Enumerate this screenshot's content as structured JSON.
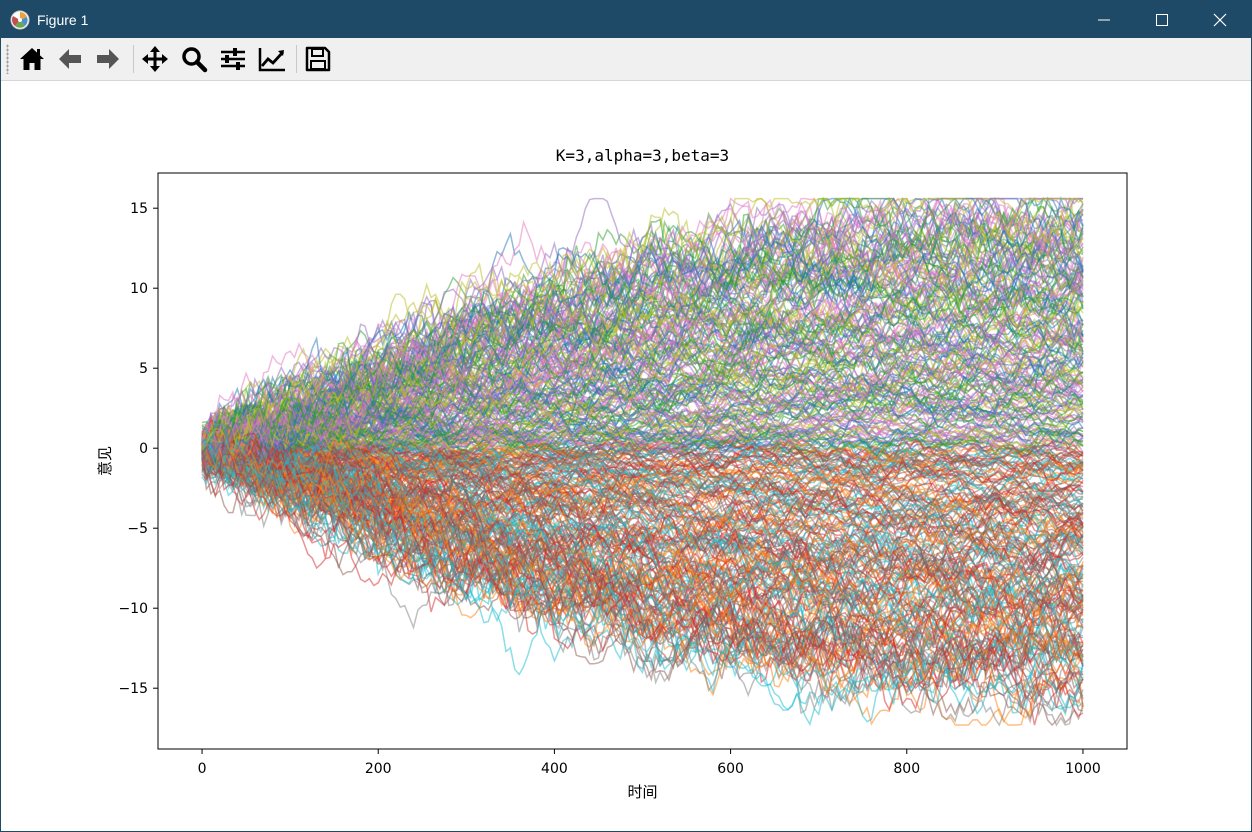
{
  "window": {
    "title": "Figure 1",
    "titlebar_color": "#1e4a67",
    "controls": [
      "minimize-icon",
      "maximize-icon",
      "close-icon"
    ]
  },
  "toolbar": {
    "buttons": [
      {
        "name": "home",
        "icon": "home-icon"
      },
      {
        "name": "back",
        "icon": "arrow-left-icon"
      },
      {
        "name": "forward",
        "icon": "arrow-right-icon"
      },
      {
        "name": "pan",
        "icon": "move-icon"
      },
      {
        "name": "zoom",
        "icon": "magnifier-icon"
      },
      {
        "name": "configure-subplots",
        "icon": "sliders-icon"
      },
      {
        "name": "edit-axes",
        "icon": "line-chart-icon"
      },
      {
        "name": "save",
        "icon": "floppy-disk-icon"
      }
    ]
  },
  "chart_data": {
    "type": "line",
    "title": "K=3,alpha=3,beta=3",
    "xlabel": "时间",
    "ylabel": "意见",
    "xlim": [
      -50,
      1050
    ],
    "ylim": [
      -18.8,
      17.2
    ],
    "xticks": [
      {
        "value": 0,
        "label": "0"
      },
      {
        "value": 200,
        "label": "200"
      },
      {
        "value": 400,
        "label": "400"
      },
      {
        "value": 600,
        "label": "600"
      },
      {
        "value": 800,
        "label": "800"
      },
      {
        "value": 1000,
        "label": "1000"
      }
    ],
    "yticks": [
      {
        "value": 15,
        "label": "15"
      },
      {
        "value": 10,
        "label": "10"
      },
      {
        "value": 5,
        "label": "5"
      },
      {
        "value": 0,
        "label": "0"
      },
      {
        "value": -5,
        "label": "−5"
      },
      {
        "value": -10,
        "label": "−10"
      },
      {
        "value": -15,
        "label": "−15"
      }
    ],
    "x_range": [
      0,
      1000
    ],
    "series_summary": "about 400 overlapping random-walk trajectories starting near 0 at x=0 and spreading to roughly -16..15 by x=1000",
    "series_alpha": 0.5,
    "palette": [
      "#1f77b4",
      "#ff7f0e",
      "#2ca02c",
      "#d62728",
      "#9467bd",
      "#8c564b",
      "#e377c2",
      "#7f7f7f",
      "#bcbd22",
      "#17becf"
    ],
    "grid": false,
    "legend": "none"
  }
}
